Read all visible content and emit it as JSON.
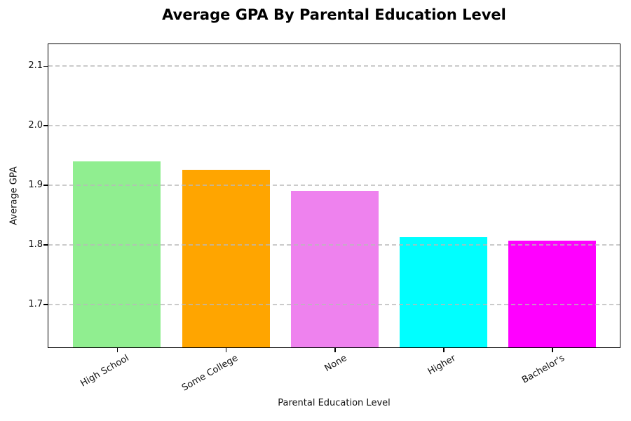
{
  "chart_data": {
    "type": "bar",
    "title": "Average GPA By Parental Education Level",
    "xlabel": "Parental Education Level",
    "ylabel": "Average GPA",
    "categories": [
      "High School",
      "Some College",
      "None",
      "Higher",
      "Bachelor's"
    ],
    "values": [
      1.943,
      1.929,
      1.893,
      1.815,
      1.809
    ],
    "bar_colors": [
      "#90EE90",
      "#FFA500",
      "#EE82EE",
      "#00FFFF",
      "#FF00FF"
    ],
    "yticks": [
      1.7,
      1.8,
      1.9,
      2.0,
      2.1
    ],
    "ytick_labels": [
      "1.7",
      "1.8",
      "1.9",
      "2.0",
      "2.1"
    ],
    "ylim": [
      1.627,
      2.138
    ],
    "grid": "horizontal dashed, drawn above bars",
    "grid_color": "#b9b9b9",
    "x_tick_rotation_deg": 30,
    "legend": "none",
    "background_color": "#ffffff",
    "text_color": "#000000"
  }
}
